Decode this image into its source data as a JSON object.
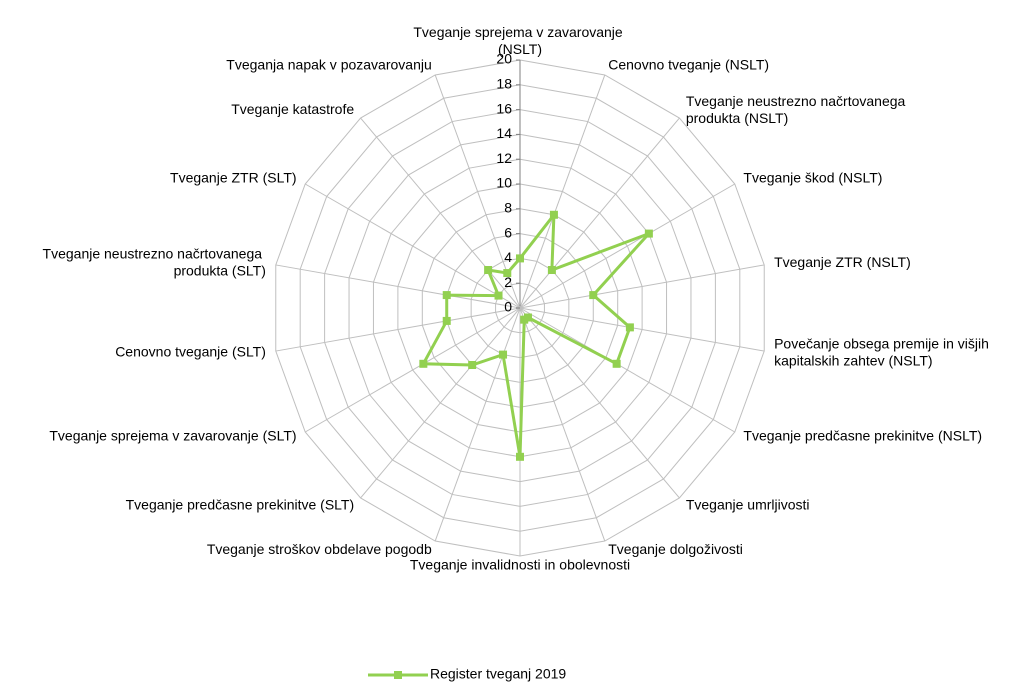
{
  "chart_data": {
    "type": "radar",
    "categories": [
      "Tveganje sprejema v zavarovanje (NSLT)",
      "Cenovno tveganje (NSLT)",
      "Tveganje neustrezno načrtovanega produkta (NSLT)",
      "Tveganje škod (NSLT)",
      "Tveganje ZTR (NSLT)",
      "Povečanje obsega premije in višjih kapitalskih zahtev (NSLT)",
      "Tveganje predčasne prekinitve (NSLT)",
      "Tveganje umrljivosti",
      "Tveganje dolgoživosti",
      "Tveganje invalidnosti in obolevnosti",
      "Tveganje stroškov obdelave pogodb",
      "Tveganje predčasne prekinitve (SLT)",
      "Tveganje sprejema v zavarovanje (SLT)",
      "Cenovno tveganje (SLT)",
      "Tveganje neustrezno načrtovanega produkta (SLT)",
      "Tveganje ZTR (SLT)",
      "Tveganje katastrofe",
      "Tveganja napak v pozavarovanju"
    ],
    "series": [
      {
        "name": "Register tveganj 2019",
        "color": "#92d050",
        "values": [
          4,
          8,
          4,
          12,
          6,
          9,
          9,
          1,
          1,
          12,
          4,
          6,
          9,
          6,
          6,
          2,
          4,
          3
        ]
      }
    ],
    "ylim": [
      0,
      20
    ],
    "yticks": [
      0,
      2,
      4,
      6,
      8,
      10,
      12,
      14,
      16,
      18,
      20
    ],
    "grid": true,
    "legend": "bottom"
  }
}
